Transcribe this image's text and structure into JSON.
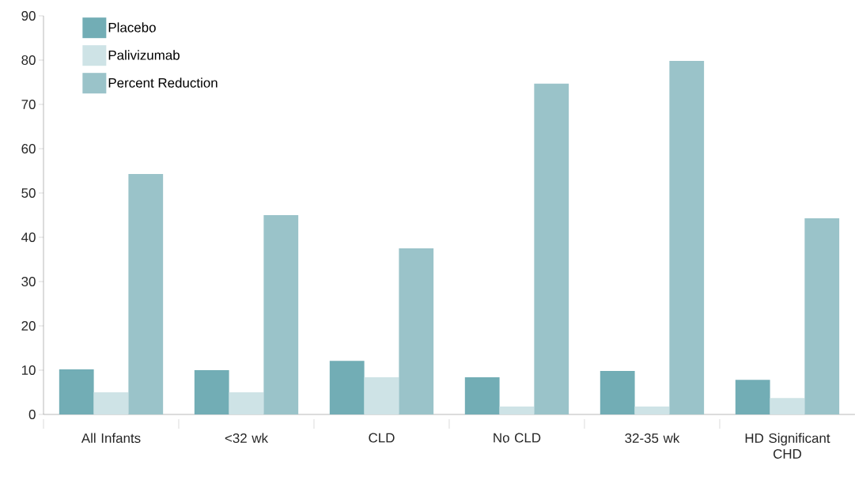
{
  "chart_data": {
    "type": "bar",
    "categories": [
      "All Infants",
      "<32 wk",
      "CLD",
      "No CLD",
      "32-35 wk",
      "HD Significant CHD"
    ],
    "series": [
      {
        "name": "Placebo",
        "color": "#72adb5",
        "values": [
          10.2,
          10.0,
          12.1,
          8.4,
          9.8,
          7.8
        ]
      },
      {
        "name": "Palivizumab",
        "color": "#cee3e6",
        "values": [
          5.0,
          5.0,
          8.4,
          1.8,
          1.8,
          3.7
        ]
      },
      {
        "name": "Percent Reduction",
        "color": "#9ac3c9",
        "values": [
          54.3,
          45.0,
          37.5,
          74.7,
          79.8,
          44.3
        ]
      }
    ],
    "ylim": [
      0,
      90
    ],
    "yticks": [
      0,
      10,
      20,
      30,
      40,
      50,
      60,
      70,
      80,
      90
    ],
    "grid": false,
    "legend": "top left"
  }
}
